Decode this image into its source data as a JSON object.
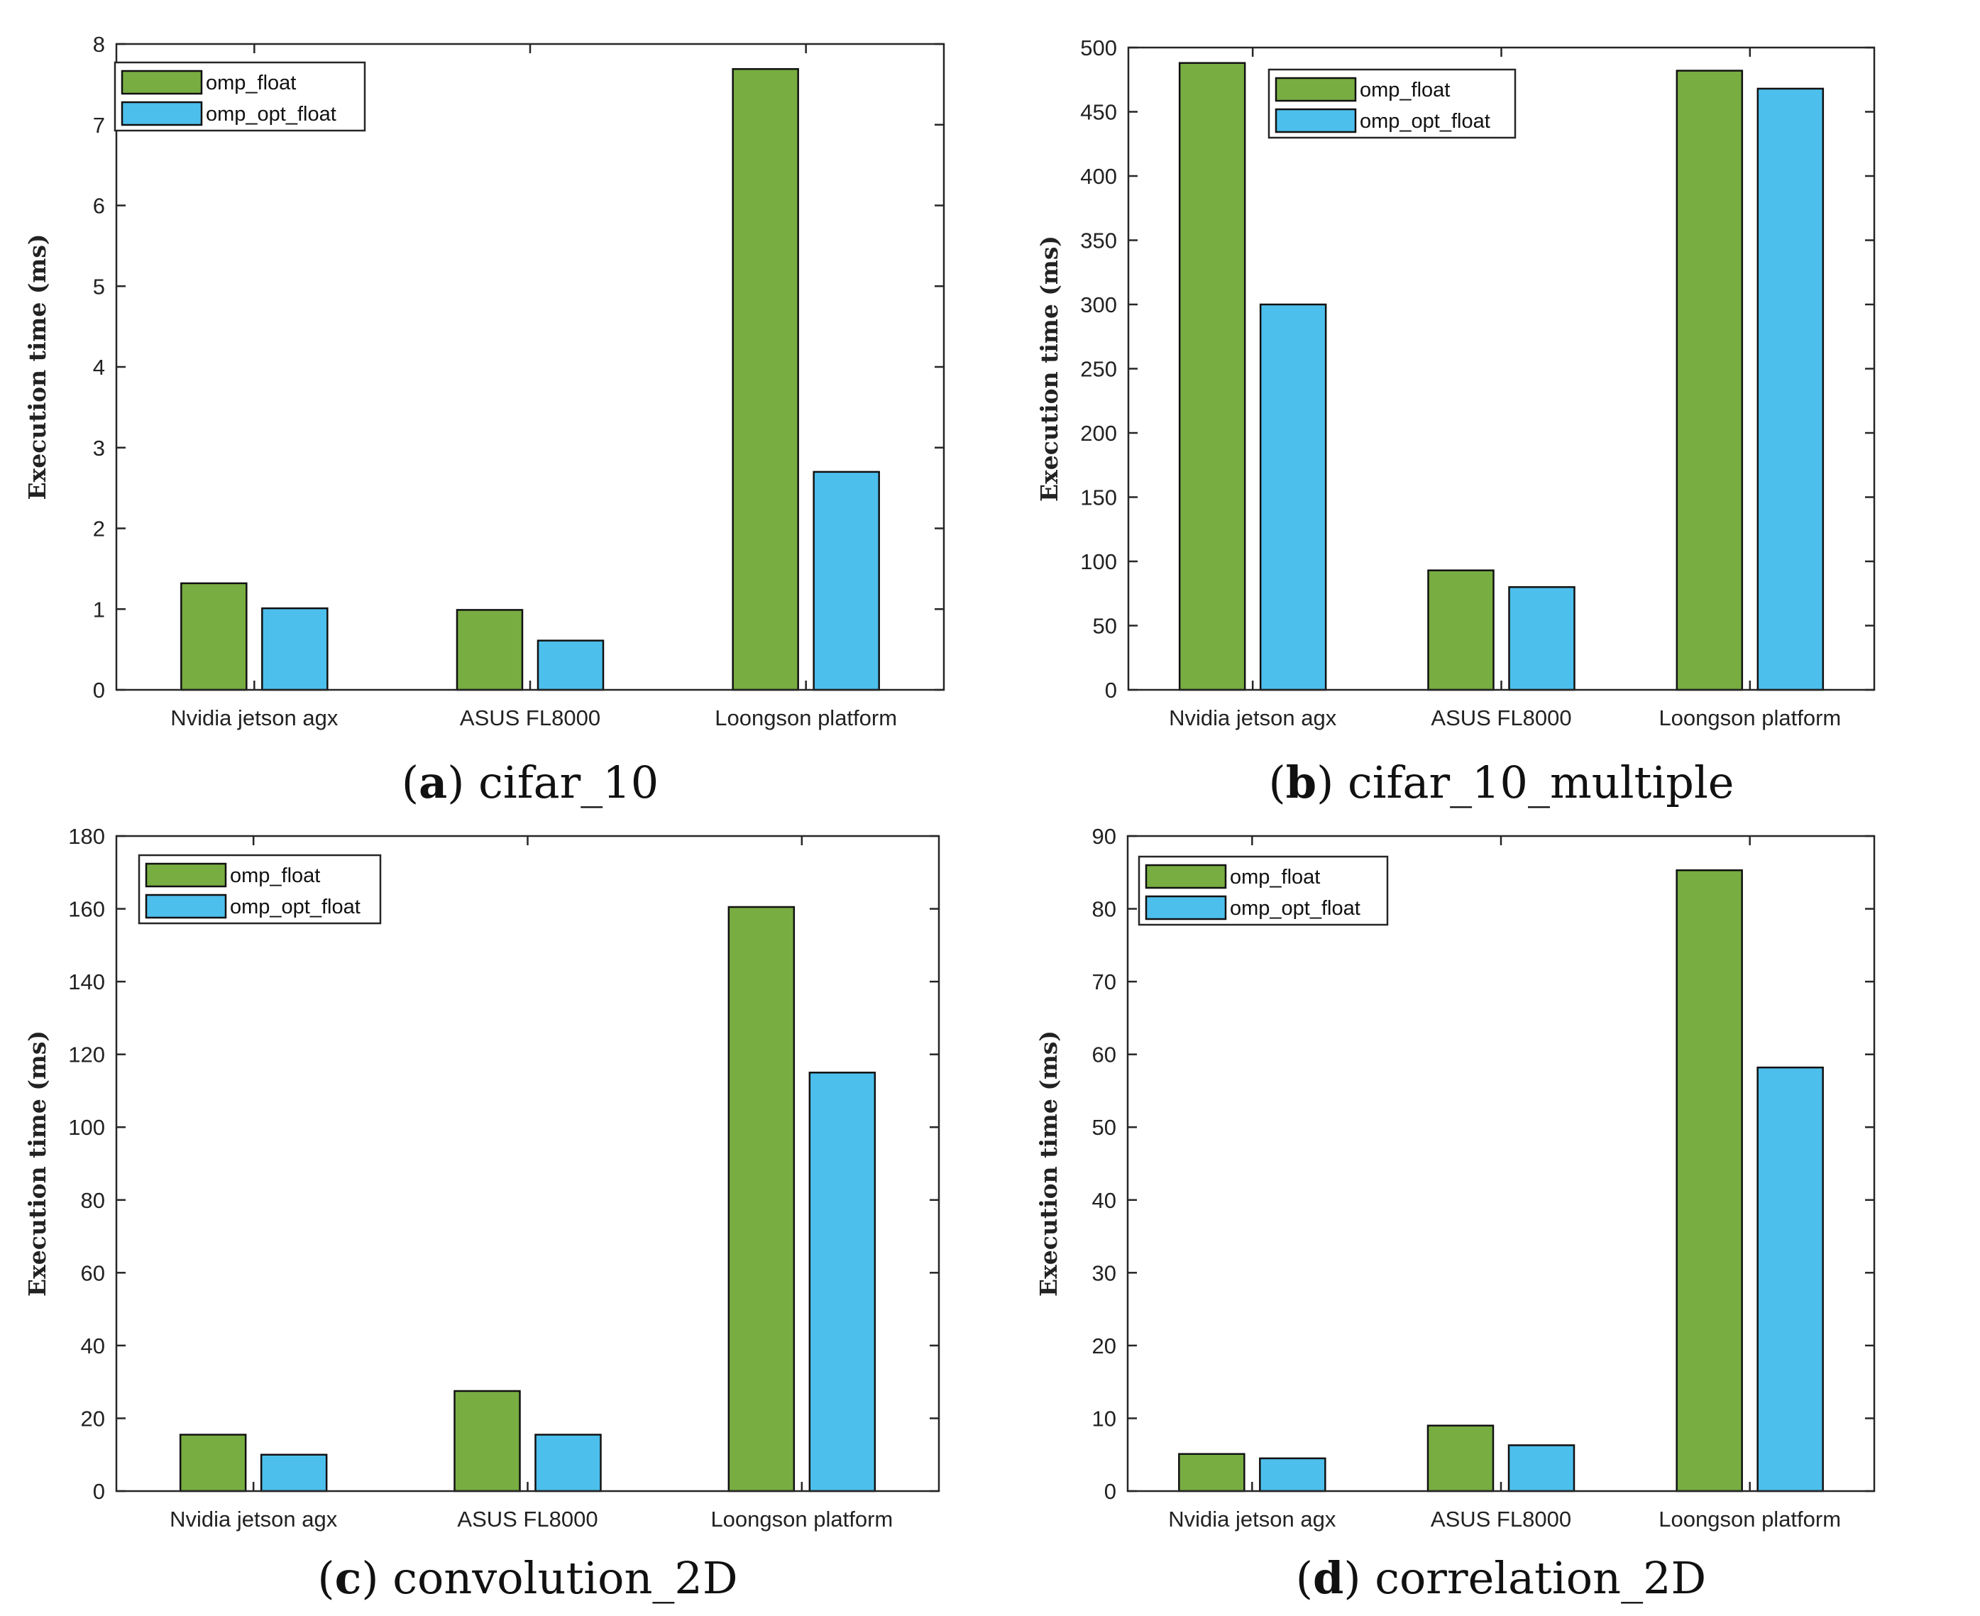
{
  "colors": {
    "omp_float": "#78ad42",
    "omp_opt_float": "#4dbfec",
    "axis": "#262626"
  },
  "chart_data": [
    {
      "type": "bar",
      "caption_letter": "a",
      "caption_title": "cifar_10",
      "ylabel": "Execution time (ms)",
      "categories": [
        "Nvidia jetson agx",
        "ASUS FL8000",
        "Loongson platform"
      ],
      "ylim": [
        0,
        8
      ],
      "yticks": [
        0,
        1,
        2,
        3,
        4,
        5,
        6,
        7,
        8
      ],
      "legend_position": "top-left",
      "series": [
        {
          "name": "omp_float",
          "values": [
            1.32,
            0.99,
            7.69
          ]
        },
        {
          "name": "omp_opt_float",
          "values": [
            1.01,
            0.61,
            2.7
          ]
        }
      ]
    },
    {
      "type": "bar",
      "caption_letter": "b",
      "caption_title": "cifar_10_multiple",
      "ylabel": "Execution time (ms)",
      "categories": [
        "Nvidia jetson agx",
        "ASUS FL8000",
        "Loongson platform"
      ],
      "ylim": [
        0,
        500
      ],
      "yticks": [
        0,
        50,
        100,
        150,
        200,
        250,
        300,
        350,
        400,
        450,
        500
      ],
      "legend_position": "top-left",
      "series": [
        {
          "name": "omp_float",
          "values": [
            488,
            93,
            482
          ]
        },
        {
          "name": "omp_opt_float",
          "values": [
            300,
            80,
            468
          ]
        }
      ]
    },
    {
      "type": "bar",
      "caption_letter": "c",
      "caption_title": "convolution_2D",
      "ylabel": "Execution time (ms)",
      "categories": [
        "Nvidia jetson agx",
        "ASUS FL8000",
        "Loongson platform"
      ],
      "ylim": [
        0,
        180
      ],
      "yticks": [
        0,
        20,
        40,
        60,
        80,
        100,
        120,
        140,
        160,
        180
      ],
      "legend_position": "top-left",
      "series": [
        {
          "name": "omp_float",
          "values": [
            15.5,
            27.5,
            160.5
          ]
        },
        {
          "name": "omp_opt_float",
          "values": [
            10,
            15.5,
            115
          ]
        }
      ]
    },
    {
      "type": "bar",
      "caption_letter": "d",
      "caption_title": "correlation_2D",
      "ylabel": "Execution time (ms)",
      "categories": [
        "Nvidia jetson agx",
        "ASUS FL8000",
        "Loongson platform"
      ],
      "ylim": [
        0,
        90
      ],
      "yticks": [
        0,
        10,
        20,
        30,
        40,
        50,
        60,
        70,
        80,
        90
      ],
      "legend_position": "top-left",
      "series": [
        {
          "name": "omp_float",
          "values": [
            5.1,
            9,
            85.3
          ]
        },
        {
          "name": "omp_opt_float",
          "values": [
            4.5,
            6.3,
            58.2
          ]
        }
      ]
    }
  ]
}
